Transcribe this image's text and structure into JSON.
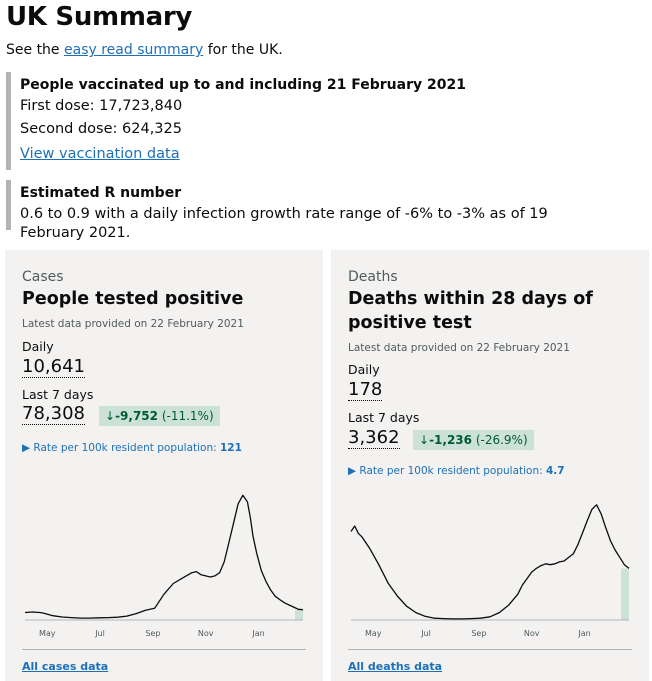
{
  "header": {
    "title": "UK Summary",
    "intro_before": "See the ",
    "intro_link": "easy read summary",
    "intro_after": " for the UK."
  },
  "vaccination": {
    "heading": "People vaccinated up to and including 21 February 2021",
    "first_dose": "First dose: 17,723,840",
    "second_dose": "Second dose: 624,325",
    "link": "View vaccination data"
  },
  "r_number": {
    "heading": "Estimated R number",
    "text": "0.6 to 0.9 with a daily infection growth rate range of -6% to -3% as of 19 February 2021."
  },
  "cards": [
    {
      "caption": "Cases",
      "title": "People tested positive",
      "updated": "Latest data provided on 22 February 2021",
      "daily_label": "Daily",
      "daily_value": "10,641",
      "week_label": "Last 7 days",
      "week_value": "78,308",
      "change_value": "-9,752",
      "change_pct": "(-11.1%)",
      "rate_label": "Rate per 100k resident population:",
      "rate_value": "121",
      "footer_link": "All cases data"
    },
    {
      "caption": "Deaths",
      "title": "Deaths within 28 days of positive test",
      "updated": "Latest data provided on 22 February 2021",
      "daily_label": "Daily",
      "daily_value": "178",
      "week_label": "Last 7 days",
      "week_value": "3,362",
      "change_value": "-1,236",
      "change_pct": "(-26.9%)",
      "rate_label": "Rate per 100k resident population:",
      "rate_value": "4.7",
      "footer_link": "All deaths data"
    }
  ],
  "chart_data": [
    {
      "type": "line",
      "title": "People tested positive",
      "x_ticks": [
        "May",
        "Jul",
        "Sep",
        "Nov",
        "Jan"
      ],
      "ylim": [
        0,
        60000
      ],
      "x": [
        0,
        8,
        16,
        20,
        30,
        40,
        50,
        60,
        70,
        80,
        90,
        100,
        110,
        120,
        130,
        140,
        150,
        160,
        170,
        180,
        185,
        190,
        195,
        200,
        205,
        210,
        215,
        220,
        225,
        230,
        235,
        240,
        243,
        246,
        250,
        255,
        260,
        265,
        270,
        275,
        280,
        285,
        290,
        295,
        300
      ],
      "values": [
        3500,
        3700,
        3500,
        3200,
        2000,
        1400,
        1100,
        900,
        900,
        1000,
        1100,
        1300,
        1800,
        3000,
        4500,
        5500,
        12000,
        17000,
        19500,
        22000,
        22500,
        21000,
        20500,
        20000,
        20500,
        22000,
        27000,
        36000,
        45000,
        54000,
        58000,
        55000,
        48000,
        39000,
        31000,
        23000,
        18000,
        14000,
        11000,
        9500,
        8000,
        7000,
        6000,
        5000,
        4800
      ],
      "highlighted_days": 7
    },
    {
      "type": "line",
      "title": "Deaths within 28 days of positive test",
      "x_ticks": [
        "May",
        "Jul",
        "Sep",
        "Nov",
        "Jan"
      ],
      "ylim": [
        0,
        1400
      ],
      "x": [
        0,
        4,
        8,
        12,
        20,
        30,
        40,
        50,
        60,
        70,
        80,
        90,
        100,
        110,
        120,
        130,
        140,
        150,
        160,
        170,
        180,
        185,
        190,
        195,
        200,
        205,
        210,
        215,
        220,
        225,
        230,
        235,
        240,
        245,
        250,
        255,
        260,
        265,
        270,
        275,
        280,
        285,
        290,
        295,
        300
      ],
      "values": [
        960,
        1020,
        940,
        900,
        780,
        600,
        400,
        260,
        150,
        80,
        40,
        20,
        15,
        12,
        12,
        15,
        20,
        35,
        80,
        160,
        280,
        380,
        450,
        520,
        560,
        590,
        610,
        600,
        610,
        630,
        640,
        680,
        720,
        820,
        950,
        1080,
        1200,
        1250,
        1150,
        1000,
        860,
        760,
        680,
        600,
        560
      ],
      "highlighted_days": 7
    }
  ]
}
